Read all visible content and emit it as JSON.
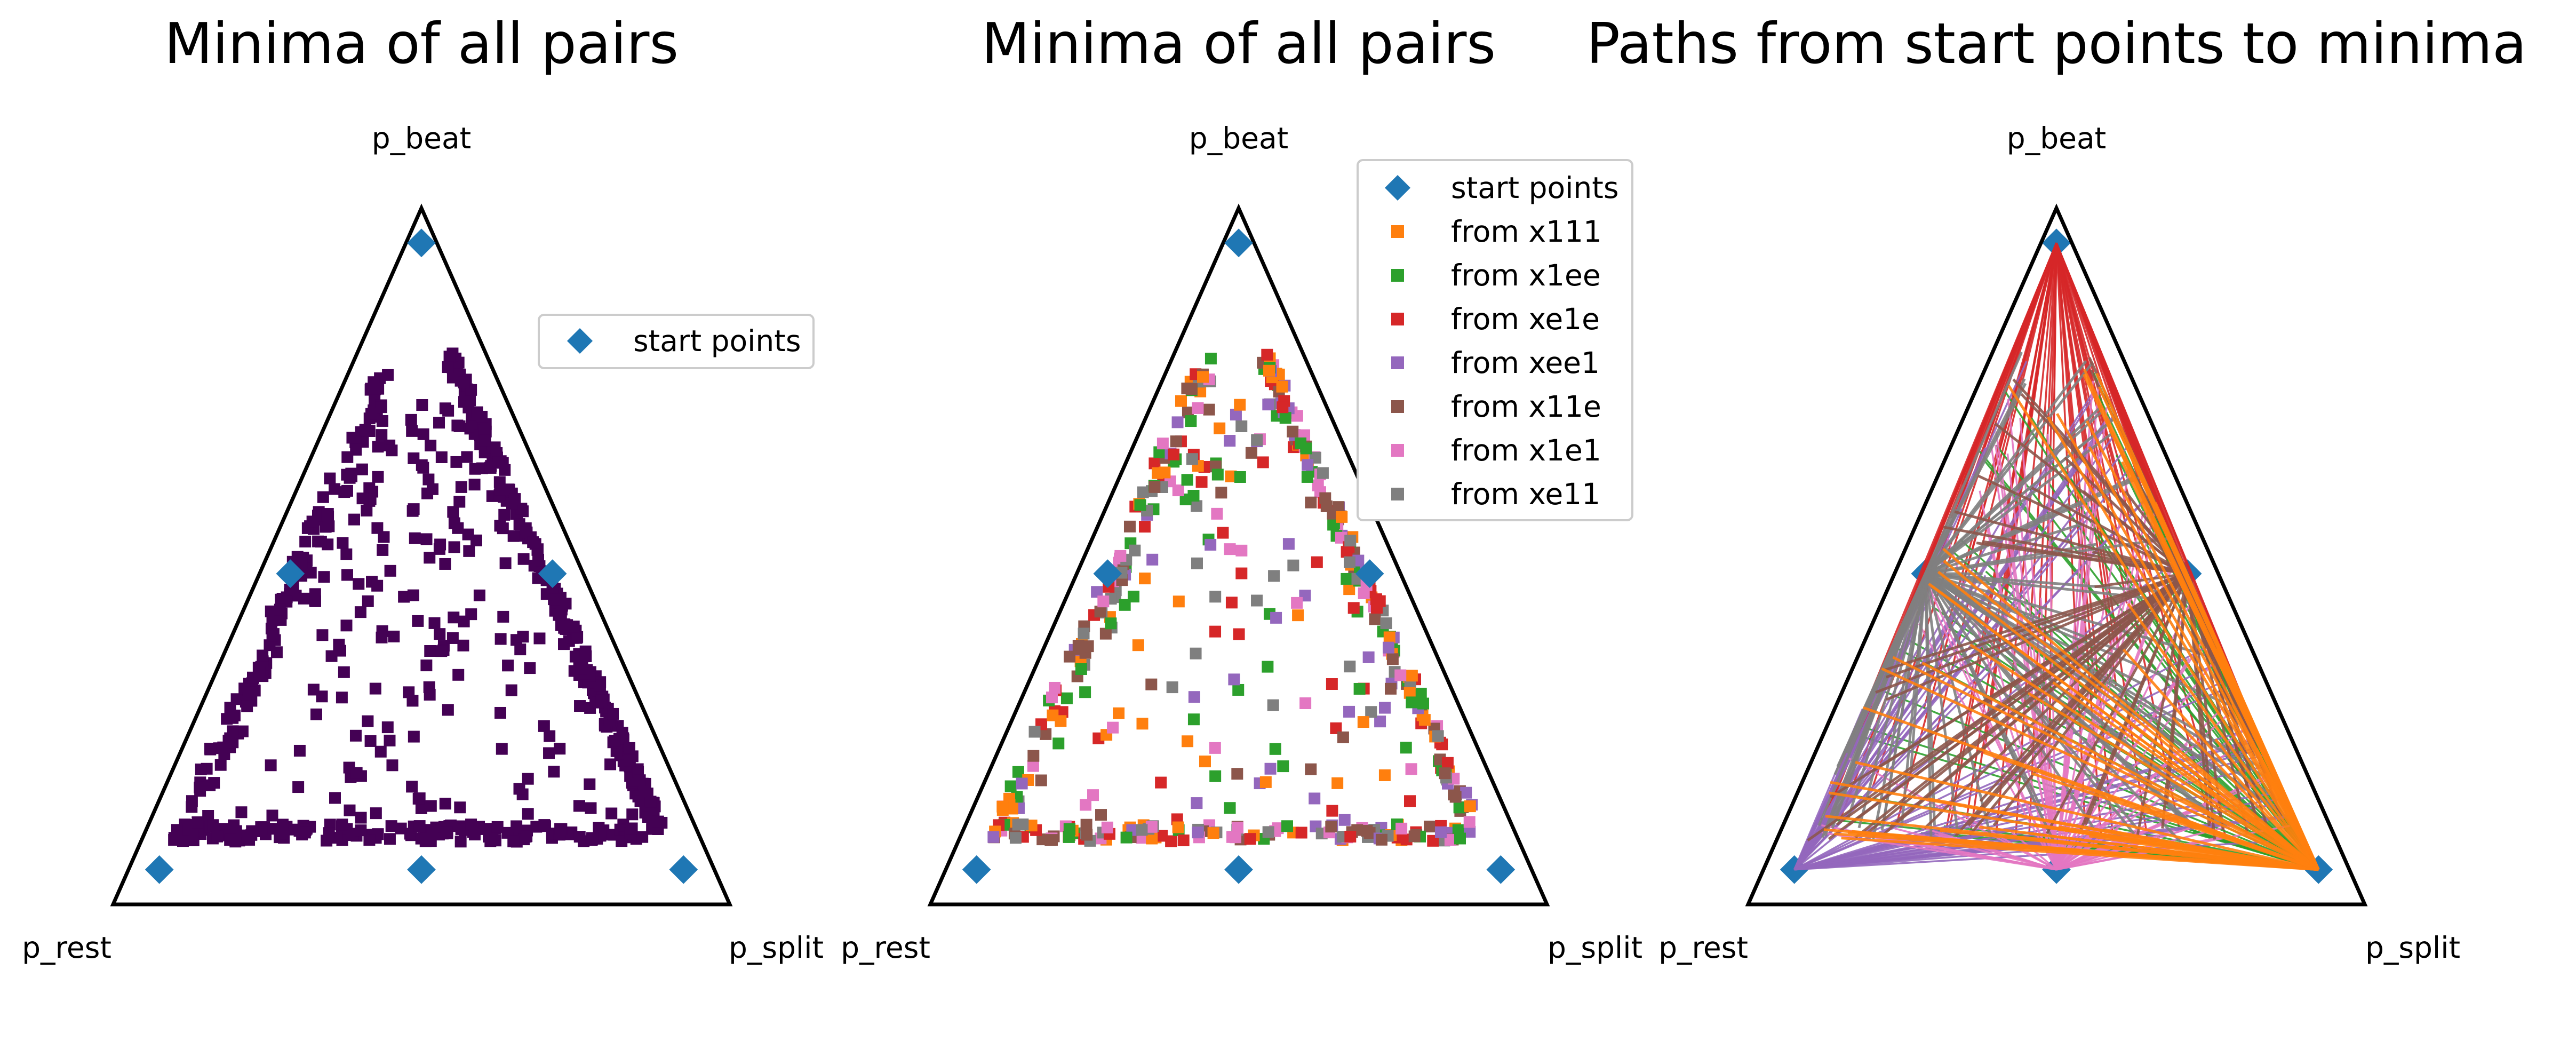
{
  "chart_data": [
    {
      "type": "scatter",
      "title": "Minima of all pairs",
      "ternary_axes": {
        "top": "p_beat",
        "left": "p_rest",
        "right": "p_split"
      },
      "legend": {
        "placement": "right",
        "entries": [
          "start points"
        ]
      },
      "start_points": [
        [
          0.95,
          0.025,
          0.025
        ],
        [
          0.05,
          0.05,
          0.9
        ],
        [
          0.05,
          0.9,
          0.05
        ],
        [
          0.475,
          0.05,
          0.475
        ],
        [
          0.475,
          0.475,
          0.05
        ],
        [
          0.05,
          0.475,
          0.475
        ]
      ],
      "minima_color": "#440154",
      "minima_edge": "p_beat from 0.10 to 0.85 along all three edges, densest on the right edge and bottom edge"
    },
    {
      "type": "scatter",
      "title": "Minima of all pairs",
      "ternary_axes": {
        "top": "p_beat",
        "left": "p_rest",
        "right": "p_split"
      },
      "legend": {
        "placement": "top-right",
        "entries": [
          "start points",
          "from x111",
          "from x1ee",
          "from xe1e",
          "from xee1",
          "from x11e",
          "from x1e1",
          "from xe11"
        ]
      },
      "series_colors": [
        "#1f77b4",
        "#ff7f0e",
        "#2ca02c",
        "#d62728",
        "#9467bd",
        "#8c564b",
        "#e377c2",
        "#7f7f7f"
      ],
      "start_points": [
        [
          0.95,
          0.025,
          0.025
        ],
        [
          0.05,
          0.05,
          0.9
        ],
        [
          0.05,
          0.9,
          0.05
        ],
        [
          0.475,
          0.05,
          0.475
        ],
        [
          0.475,
          0.475,
          0.05
        ],
        [
          0.05,
          0.475,
          0.475
        ]
      ]
    },
    {
      "type": "line",
      "title": "Paths from start points to minima",
      "ternary_axes": {
        "top": "p_beat",
        "left": "p_rest",
        "right": "p_split"
      },
      "series_colors": [
        "#d62728",
        "#2ca02c",
        "#9467bd",
        "#e377c2",
        "#7f7f7f",
        "#8c564b",
        "#ff7f0e"
      ],
      "start_points": [
        [
          0.95,
          0.025,
          0.025
        ],
        [
          0.05,
          0.05,
          0.9
        ],
        [
          0.05,
          0.9,
          0.05
        ],
        [
          0.475,
          0.05,
          0.475
        ],
        [
          0.475,
          0.475,
          0.05
        ],
        [
          0.05,
          0.475,
          0.475
        ]
      ]
    }
  ],
  "start_color": "#1f77b4"
}
